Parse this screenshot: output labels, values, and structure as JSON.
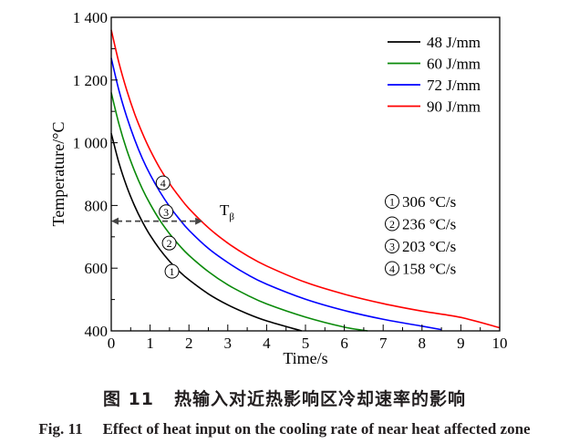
{
  "chart_data": {
    "type": "line",
    "title": "",
    "xlabel": "Time/s",
    "ylabel": "Temperature/°C",
    "xlim": [
      0,
      10
    ],
    "ylim": [
      400,
      1400
    ],
    "x_ticks": [
      "0",
      "1",
      "2",
      "3",
      "4",
      "5",
      "6",
      "7",
      "8",
      "9",
      "10"
    ],
    "y_ticks": [
      {
        "value": 400,
        "label": "400"
      },
      {
        "value": 600,
        "label": "600"
      },
      {
        "value": 800,
        "label": "800"
      },
      {
        "value": 1000,
        "label": "1 000"
      },
      {
        "value": 1200,
        "label": "1 200"
      },
      {
        "value": 1400,
        "label": "1 400"
      }
    ],
    "grid": false,
    "legend_position": "top-right",
    "series": [
      {
        "name": "48 J/mm",
        "color": "#000000",
        "x": [
          0,
          0.2,
          0.4,
          0.6,
          0.8,
          1,
          1.25,
          1.5,
          1.75,
          2,
          2.5,
          3,
          3.5,
          4,
          4.9
        ],
        "y": [
          1030,
          935,
          860,
          799,
          748,
          705,
          660,
          622,
          590,
          563,
          518,
          483,
          455,
          432,
          400
        ]
      },
      {
        "name": "60 J/mm",
        "color": "#0a8a0a",
        "x": [
          0,
          0.2,
          0.4,
          0.6,
          0.8,
          1,
          1.25,
          1.5,
          1.75,
          2,
          2.5,
          3,
          3.5,
          4,
          5,
          6,
          6.6
        ],
        "y": [
          1160,
          1059,
          977,
          910,
          853,
          805,
          753,
          710,
          673,
          641,
          589,
          547,
          514,
          486,
          444,
          412,
          400
        ]
      },
      {
        "name": "72 J/mm",
        "color": "#0000ff",
        "x": [
          0,
          0.2,
          0.4,
          0.6,
          0.8,
          1,
          1.25,
          1.5,
          1.75,
          2,
          2.5,
          3,
          3.5,
          4,
          5,
          6,
          7,
          8,
          8.5
        ],
        "y": [
          1270,
          1166,
          1082,
          1011,
          950,
          899,
          844,
          797,
          757,
          721,
          663,
          618,
          580,
          549,
          501,
          465,
          437,
          415,
          404
        ]
      },
      {
        "name": "90 J/mm",
        "color": "#ff0000",
        "x": [
          0,
          0.2,
          0.4,
          0.6,
          0.8,
          1,
          1.25,
          1.5,
          1.75,
          2,
          2.5,
          3,
          3.5,
          4,
          5,
          6,
          7,
          8,
          9,
          10
        ],
        "y": [
          1360,
          1254,
          1167,
          1093,
          1031,
          977,
          919,
          870,
          828,
          790,
          729,
          680,
          640,
          607,
          555,
          517,
          487,
          463,
          443,
          410
        ]
      }
    ],
    "curve_markers": [
      {
        "label": "1",
        "x": 1.75,
        "y": 590
      },
      {
        "label": "2",
        "x": 1.68,
        "y": 680
      },
      {
        "label": "3",
        "x": 1.6,
        "y": 780
      },
      {
        "label": "4",
        "x": 1.52,
        "y": 872
      }
    ],
    "annotations": {
      "t_beta_label": "T",
      "t_beta_sub": "β",
      "t_beta_arrow": {
        "y": 750,
        "x_from": 0,
        "x_to": 2.35
      }
    },
    "cooling_rates": [
      {
        "label": "1",
        "text": "306 °C/s"
      },
      {
        "label": "2",
        "text": "236 °C/s"
      },
      {
        "label": "3",
        "text": "203 °C/s"
      },
      {
        "label": "4",
        "text": "158 °C/s"
      }
    ]
  },
  "caption": {
    "cn_fig": "图 11",
    "cn_text": "热输入对近热影响区冷却速率的影响",
    "en_fig": "Fig. 11",
    "en_text": "Effect of heat input on the cooling rate of near heat affected zone"
  }
}
